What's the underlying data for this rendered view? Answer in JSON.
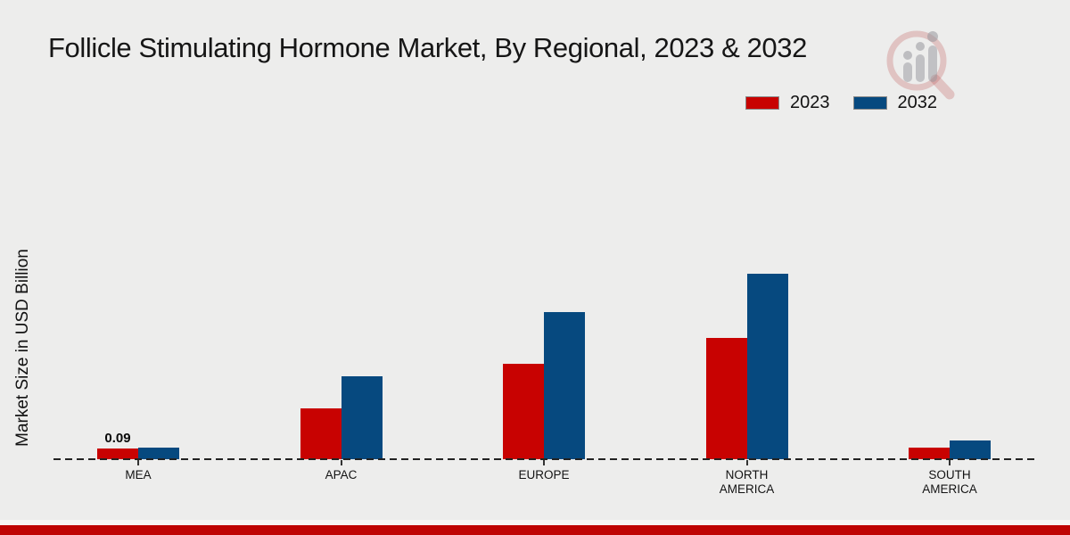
{
  "chart_data": {
    "type": "bar",
    "title": "Follicle Stimulating Hormone Market, By Regional, 2023 & 2032",
    "xlabel": "",
    "ylabel": "Market Size in USD Billion",
    "categories": [
      "MEA",
      "APAC",
      "EUROPE",
      "NORTH AMERICA",
      "SOUTH AMERICA"
    ],
    "series": [
      {
        "name": "2023",
        "color": "#c80201",
        "values": [
          0.09,
          0.43,
          0.8,
          1.02,
          0.1
        ]
      },
      {
        "name": "2032",
        "color": "#06497f",
        "values": [
          0.1,
          0.7,
          1.24,
          1.56,
          0.16
        ]
      }
    ],
    "value_labels": [
      {
        "series": "2023",
        "category": "MEA",
        "text": "0.09"
      }
    ],
    "ylim": [
      0,
      1.75
    ],
    "grid": false,
    "legend_position": "top-right",
    "baseline_style": "dashed"
  },
  "legend": {
    "items": [
      {
        "label": "2023",
        "color": "#c80201"
      },
      {
        "label": "2032",
        "color": "#06497f"
      }
    ]
  },
  "footer": {
    "bar_color": "#bf0504"
  },
  "watermark": {
    "icon": "magnifier-growth-chart-logo"
  }
}
